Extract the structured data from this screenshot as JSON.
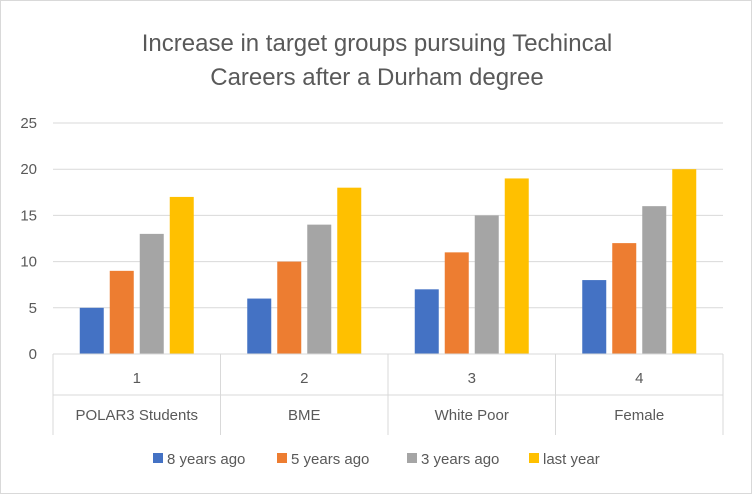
{
  "chart_data": {
    "type": "bar",
    "title_lines": [
      "Increase in target groups pursuing Techincal",
      "Careers after a Durham degree"
    ],
    "categories_level1": [
      "1",
      "2",
      "3",
      "4"
    ],
    "categories_level2": [
      "POLAR3 Students",
      "BME",
      "White Poor",
      "Female"
    ],
    "series": [
      {
        "name": "8 years ago",
        "color": "#4472c4",
        "values": [
          5,
          6,
          7,
          8
        ]
      },
      {
        "name": "5 years ago",
        "color": "#ed7d31",
        "values": [
          9,
          10,
          11,
          12
        ]
      },
      {
        "name": "3 years ago",
        "color": "#a5a5a5",
        "values": [
          13,
          14,
          15,
          16
        ]
      },
      {
        "name": "last year",
        "color": "#ffc000",
        "values": [
          17,
          18,
          19,
          20
        ]
      }
    ],
    "y_ticks": [
      "0",
      "5",
      "10",
      "15",
      "20",
      "25"
    ],
    "ylim": [
      0,
      25
    ],
    "grid": true,
    "legend_position": "bottom"
  }
}
